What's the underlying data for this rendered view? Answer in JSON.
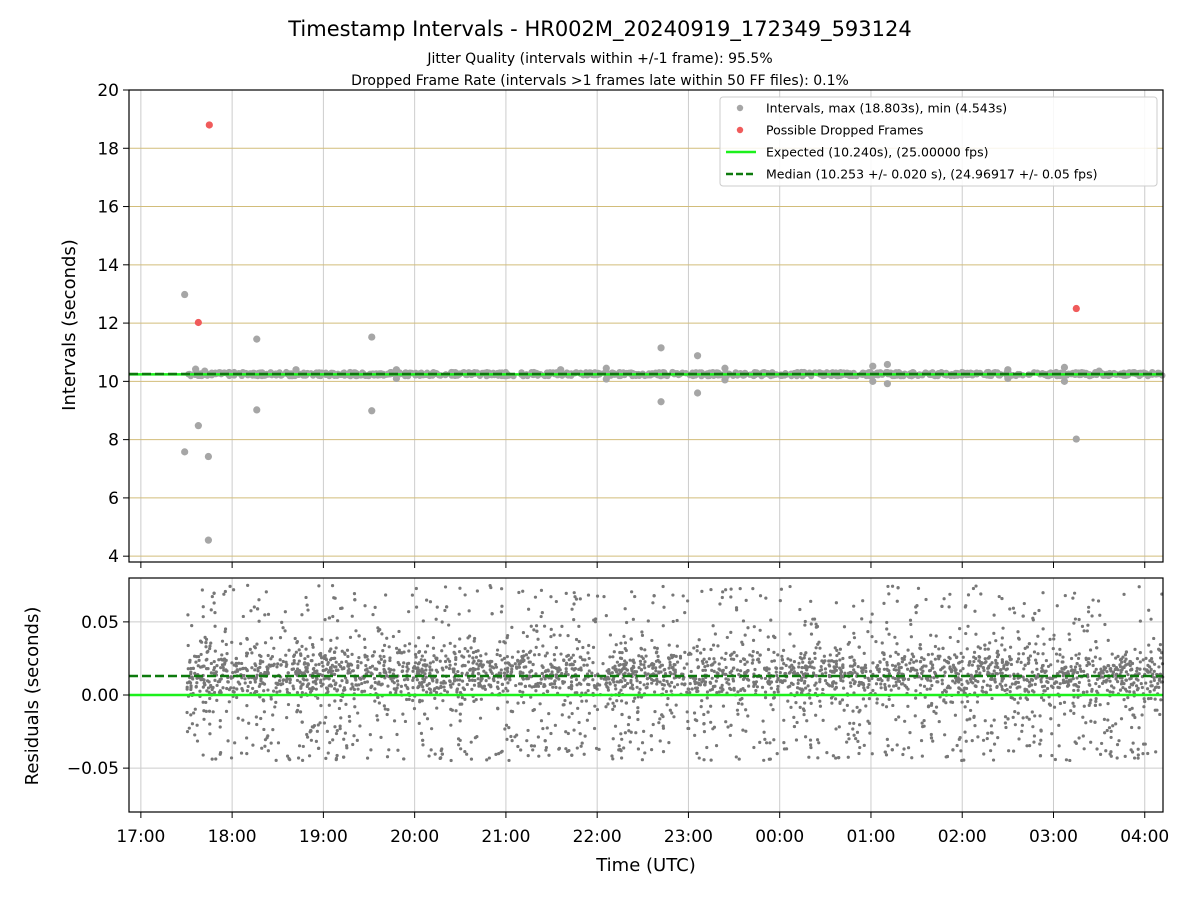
{
  "chart_data": {
    "type": "scatter",
    "title": "Timestamp Intervals - HR002M_20240919_172349_593124",
    "subtitle_lines": [
      "Jitter Quality (intervals within +/-1 frame): 95.5%",
      "Dropped Frame Rate (intervals >1 frames late within 50 FF files): 0.1%"
    ],
    "xlabel": "Time (UTC)",
    "x_range_hours": [
      16.87,
      28.2
    ],
    "x_ticks": [
      {
        "h": 17,
        "label": "17:00"
      },
      {
        "h": 18,
        "label": "18:00"
      },
      {
        "h": 19,
        "label": "19:00"
      },
      {
        "h": 20,
        "label": "20:00"
      },
      {
        "h": 21,
        "label": "21:00"
      },
      {
        "h": 22,
        "label": "22:00"
      },
      {
        "h": 23,
        "label": "23:00"
      },
      {
        "h": 24,
        "label": "00:00"
      },
      {
        "h": 25,
        "label": "01:00"
      },
      {
        "h": 26,
        "label": "02:00"
      },
      {
        "h": 27,
        "label": "03:00"
      },
      {
        "h": 28,
        "label": "04:00"
      }
    ],
    "panels": [
      {
        "id": "intervals",
        "ylabel": "Intervals (seconds)",
        "ylim": [
          3.8,
          20
        ],
        "y_ticks": [
          4,
          6,
          8,
          10,
          12,
          14,
          16,
          18,
          20
        ],
        "hgrid_color": "#d2bd7a",
        "vgrid_color": "#cccccc",
        "band": {
          "x_start": 17.5,
          "x_end": 28.2,
          "center": 10.25,
          "spread": 0.07
        },
        "points_interval": [
          [
            17.48,
            12.98
          ],
          [
            17.48,
            7.58
          ],
          [
            17.63,
            8.48
          ],
          [
            17.74,
            7.42
          ],
          [
            17.74,
            4.55
          ],
          [
            18.27,
            11.45
          ],
          [
            18.27,
            9.02
          ],
          [
            19.53,
            11.52
          ],
          [
            19.53,
            8.99
          ],
          [
            22.7,
            11.15
          ],
          [
            22.7,
            9.3
          ],
          [
            23.1,
            10.88
          ],
          [
            23.1,
            9.6
          ],
          [
            25.02,
            10.52
          ],
          [
            25.02,
            10.0
          ],
          [
            25.18,
            10.58
          ],
          [
            25.18,
            9.92
          ],
          [
            27.12,
            10.48
          ],
          [
            27.12,
            10.0
          ],
          [
            27.25,
            8.02
          ],
          [
            17.6,
            10.42
          ],
          [
            17.7,
            10.35
          ],
          [
            18.7,
            10.4
          ],
          [
            19.8,
            10.4
          ],
          [
            19.8,
            10.1
          ],
          [
            21.6,
            10.4
          ],
          [
            22.1,
            10.45
          ],
          [
            22.1,
            10.08
          ],
          [
            23.4,
            10.45
          ],
          [
            23.4,
            10.05
          ],
          [
            26.5,
            10.4
          ],
          [
            26.5,
            10.1
          ],
          [
            27.5,
            10.35
          ]
        ],
        "points_dropped": [
          [
            17.75,
            18.8
          ],
          [
            17.63,
            12.02
          ],
          [
            27.25,
            12.5
          ]
        ],
        "expected": 10.24,
        "median": 10.253,
        "legend": [
          {
            "kind": "gray-dot",
            "label": "Intervals, max (18.803s), min (4.543s)"
          },
          {
            "kind": "red-dot",
            "label": "Possible Dropped Frames"
          },
          {
            "kind": "green-line",
            "label": "Expected (10.240s), (25.00000 fps)"
          },
          {
            "kind": "median-dash",
            "label": "Median (10.253 +/- 0.020 s), (24.96917 +/- 0.05 fps)"
          }
        ],
        "legend_placement": "top-right"
      },
      {
        "id": "residuals",
        "ylabel": "Residuals (seconds)",
        "ylim": [
          -0.08,
          0.08
        ],
        "y_ticks": [
          {
            "v": 0.05,
            "label": "0.05"
          },
          {
            "v": 0.0,
            "label": "0.00"
          },
          {
            "v": -0.05,
            "label": "−0.05"
          }
        ],
        "x_start": 17.5,
        "x_end": 28.2,
        "expected": 0.0,
        "median": 0.013,
        "approx_point_count": 3700
      }
    ],
    "colors": {
      "interval": "#a6a6a6",
      "residual": "#777777",
      "dropped": "#f05b5b",
      "expected": "#1cf01c",
      "median": "#0d7a0d"
    }
  }
}
